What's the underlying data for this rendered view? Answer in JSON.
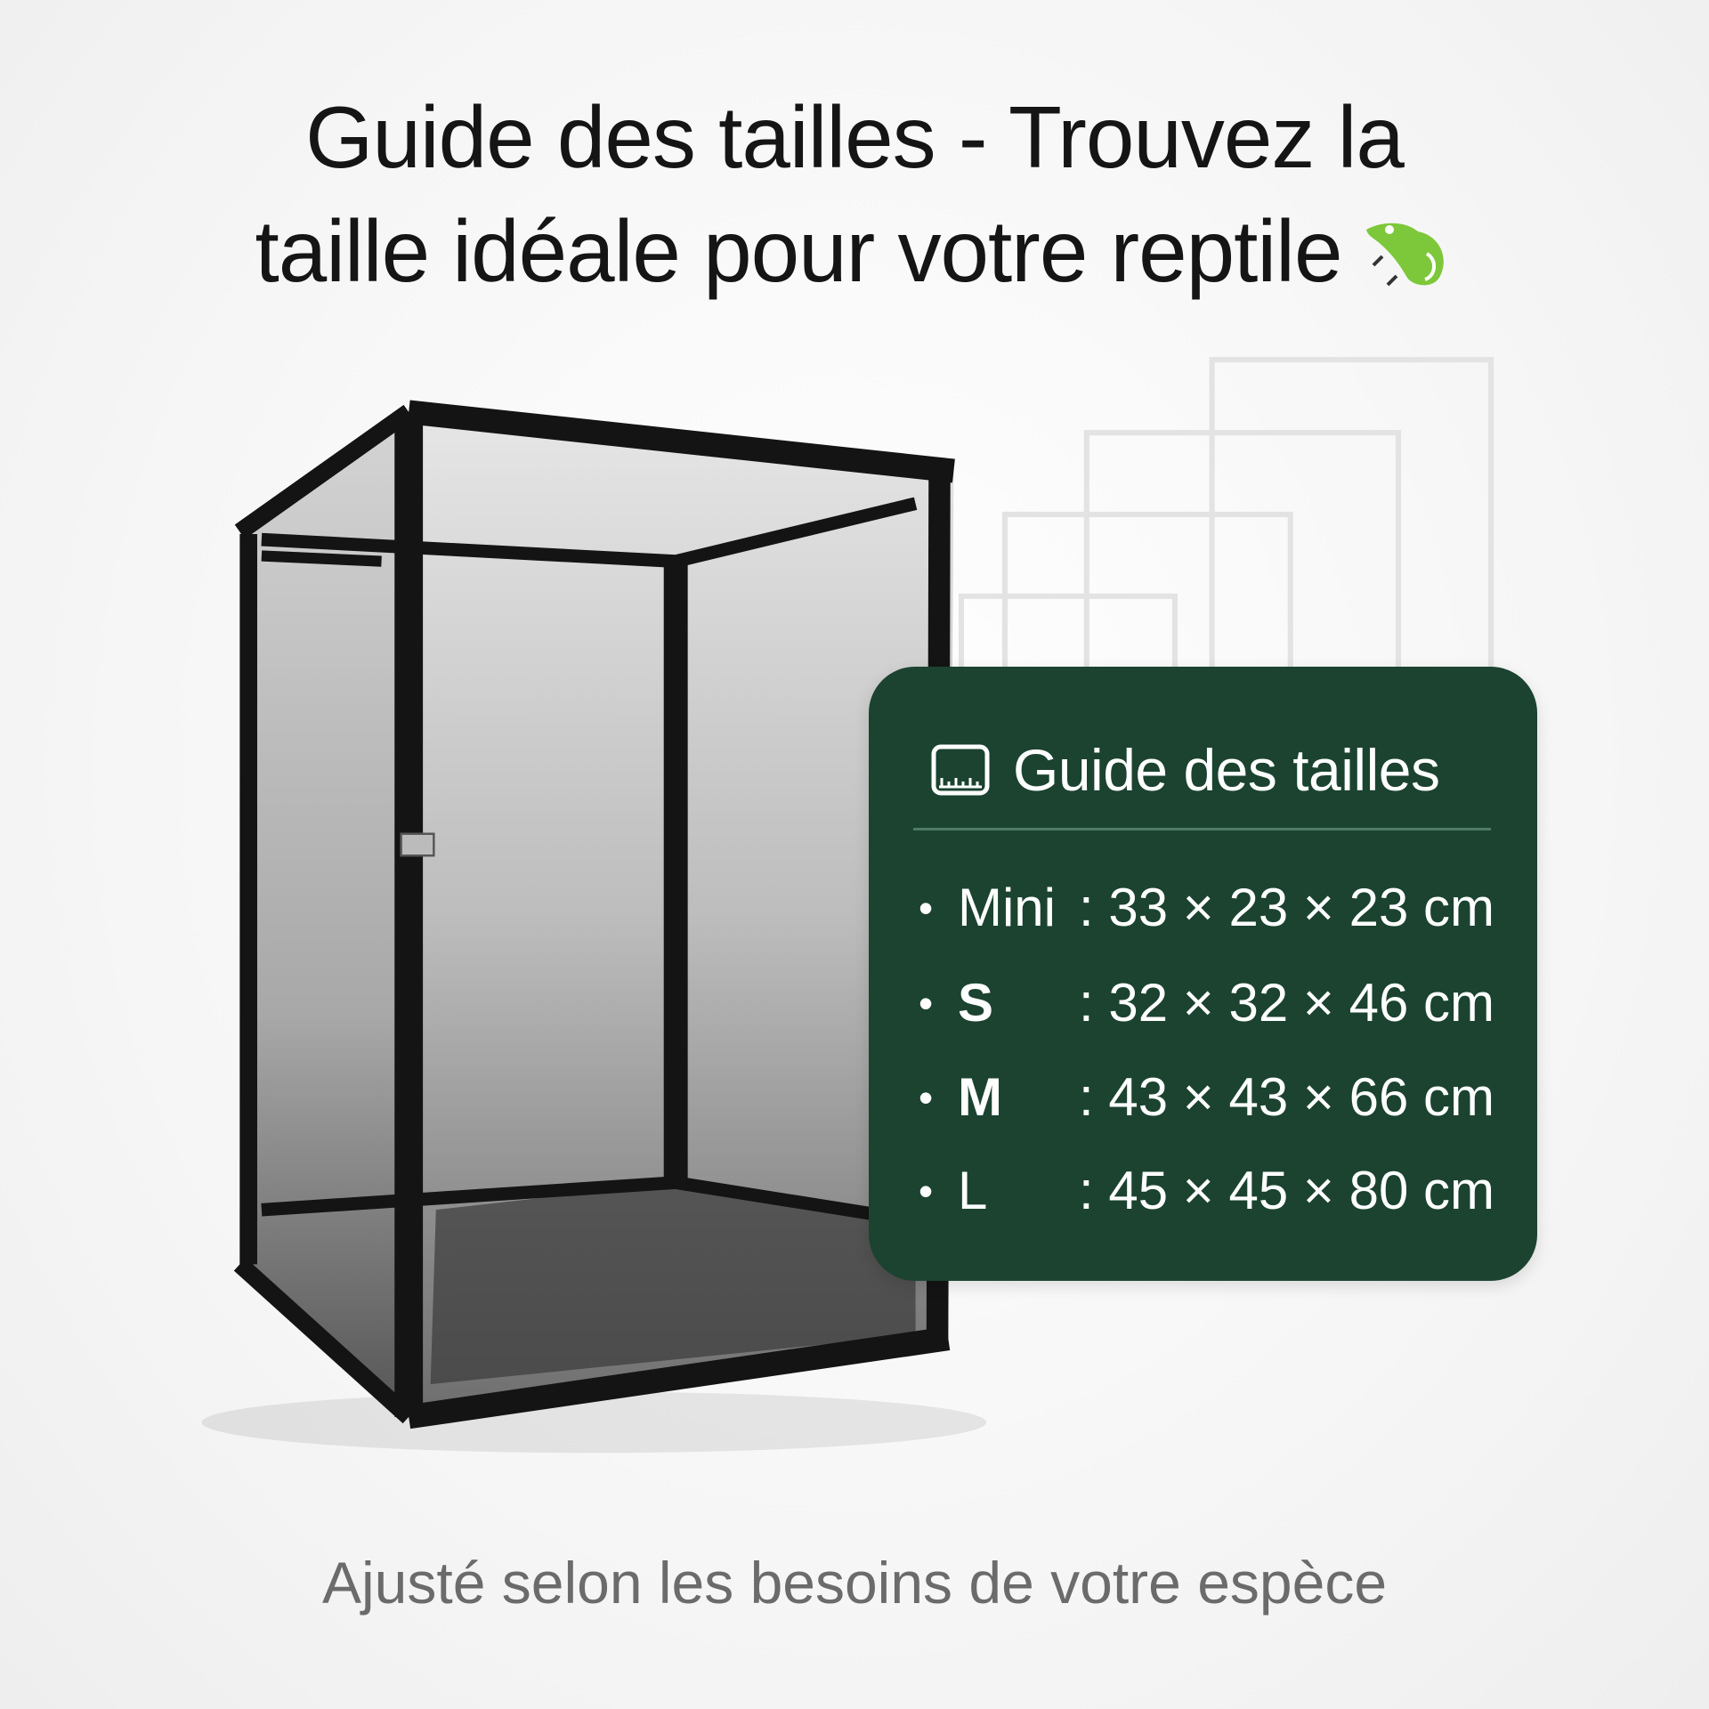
{
  "title": {
    "line1": "Guide des tailles - Trouvez la",
    "line2": "taille idéale pour votre reptile",
    "emoji_icon": "lizard-icon"
  },
  "card": {
    "icon": "ruler-icon",
    "title": "Guide des tailles",
    "background": "#1b4330",
    "sizes": [
      {
        "label": "Mini",
        "value": ": 33 × 23 × 23 cm"
      },
      {
        "label": "S",
        "value": ": 32 × 32 × 46 cm"
      },
      {
        "label": "M",
        "value": ": 43 × 43 × 66 cm"
      },
      {
        "label": "L",
        "value": ": 45 × 45 × 80 cm"
      }
    ]
  },
  "footer": "Ajusté selon les besoins de votre espèce"
}
